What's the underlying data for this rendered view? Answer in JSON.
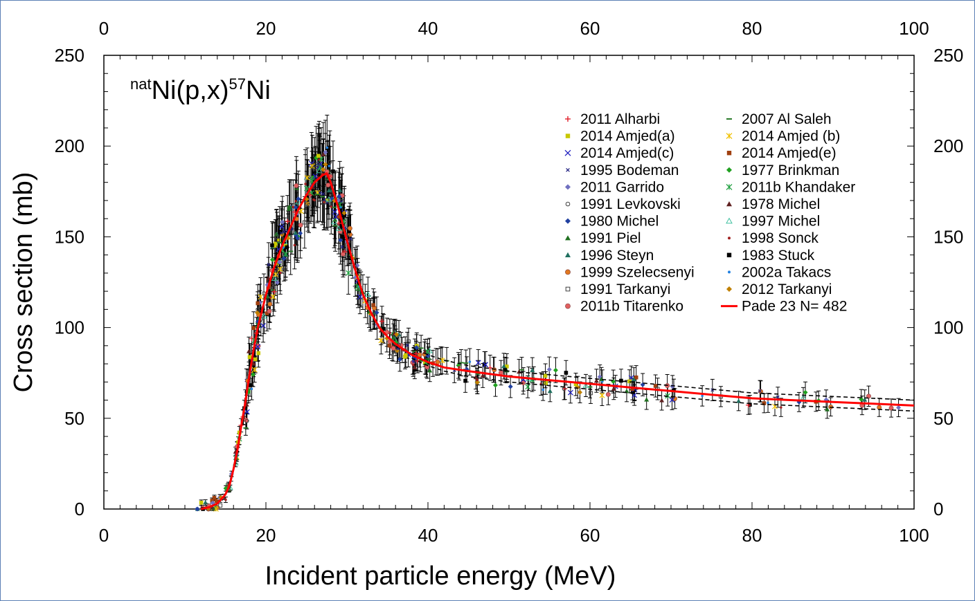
{
  "chart_data": {
    "type": "scatter",
    "title": {
      "prefix": "nat",
      "main": "Ni(p,x)",
      "sup": "57",
      "suffix": "Ni"
    },
    "xlabel": "Incident particle energy (MeV)",
    "ylabel": "Cross section (mb)",
    "xlim": [
      0,
      100
    ],
    "ylim": [
      0,
      250
    ],
    "xticks": [
      "0",
      "20",
      "40",
      "60",
      "80",
      "100"
    ],
    "yticks": [
      "0",
      "50",
      "100",
      "150",
      "200",
      "250"
    ],
    "legend": [
      {
        "label": "2011 Alharbi",
        "color": "#e0202a",
        "marker": "plus"
      },
      {
        "label": "2007 Al Saleh",
        "color": "#2a7a2a",
        "marker": "dash"
      },
      {
        "label": "2014 Amjed(a)",
        "color": "#c8c800",
        "marker": "square"
      },
      {
        "label": "2014 Amjed (b)",
        "color": "#f0c000",
        "marker": "star"
      },
      {
        "label": "2014 Amjed(c)",
        "color": "#2020c0",
        "marker": "x"
      },
      {
        "label": "2014 Amjed(e)",
        "color": "#a04010",
        "marker": "square"
      },
      {
        "label": "1995 Bodeman",
        "color": "#202080",
        "marker": "xsmall"
      },
      {
        "label": "1977 Brinkman",
        "color": "#20a020",
        "marker": "diamond"
      },
      {
        "label": "2011 Garrido",
        "color": "#7070c0",
        "marker": "diamond"
      },
      {
        "label": "2011b Khandaker",
        "color": "#20a040",
        "marker": "star"
      },
      {
        "label": "1991 Levkovski",
        "color": "#404040",
        "marker": "circle-open"
      },
      {
        "label": "1978 Michel",
        "color": "#602020",
        "marker": "triangle"
      },
      {
        "label": "1980 Michel",
        "color": "#2040a0",
        "marker": "diamond"
      },
      {
        "label": "1997 Michel",
        "color": "#40c0a0",
        "marker": "triangle-open"
      },
      {
        "label": "1991 Piel",
        "color": "#207020",
        "marker": "triangle"
      },
      {
        "label": "1998  Sonck",
        "color": "#a02020",
        "marker": "dot"
      },
      {
        "label": "1996 Steyn",
        "color": "#207060",
        "marker": "triangle"
      },
      {
        "label": "1983 Stuck",
        "color": "#000000",
        "marker": "square"
      },
      {
        "label": "1999 Szelecsenyi",
        "color": "#e07820",
        "marker": "circle"
      },
      {
        "label": "2002a Takacs",
        "color": "#2080e0",
        "marker": "dot"
      },
      {
        "label": "1991 Tarkanyi",
        "color": "#404040",
        "marker": "square-open"
      },
      {
        "label": "2012 Tarkanyi",
        "color": "#c08000",
        "marker": "diamond"
      },
      {
        "label": "2011b Titarenko",
        "color": "#e06060",
        "marker": "circle"
      },
      {
        "label": "Pade 23 N= 482",
        "color": "#ff0000",
        "marker": "line"
      }
    ],
    "fit_curve": {
      "name": "Pade 23 N= 482",
      "color": "#ff0000",
      "x": [
        12,
        13,
        14,
        15,
        15.5,
        16,
        16.5,
        17,
        17.5,
        18,
        18.5,
        19,
        20,
        21,
        22,
        23,
        24,
        25,
        26,
        27,
        27.5,
        28,
        29,
        30,
        31,
        32,
        33,
        34,
        35,
        36,
        38,
        40,
        42,
        45,
        50,
        55,
        60,
        65,
        70,
        75,
        80,
        85,
        90,
        95,
        100
      ],
      "y": [
        0,
        1,
        3,
        8,
        13,
        22,
        33,
        47,
        60,
        75,
        88,
        100,
        118,
        133,
        145,
        155,
        165,
        173,
        180,
        184,
        185,
        180,
        165,
        148,
        132,
        118,
        108,
        100,
        95,
        91,
        85,
        81,
        78,
        76,
        73,
        71,
        69,
        67,
        65,
        63,
        61,
        60,
        59,
        58,
        57
      ]
    },
    "uncertainty_band": {
      "x": [
        38,
        40,
        42,
        45,
        50,
        55,
        60,
        65,
        70,
        75,
        80,
        85,
        90,
        95,
        100
      ],
      "upper": [
        89,
        85,
        82,
        79,
        76,
        74,
        72,
        70,
        68,
        66,
        64,
        63,
        62,
        61,
        60
      ],
      "lower": [
        83,
        79,
        76,
        73,
        70,
        68,
        66,
        64,
        62,
        60,
        58,
        57,
        56,
        55,
        54
      ]
    }
  }
}
